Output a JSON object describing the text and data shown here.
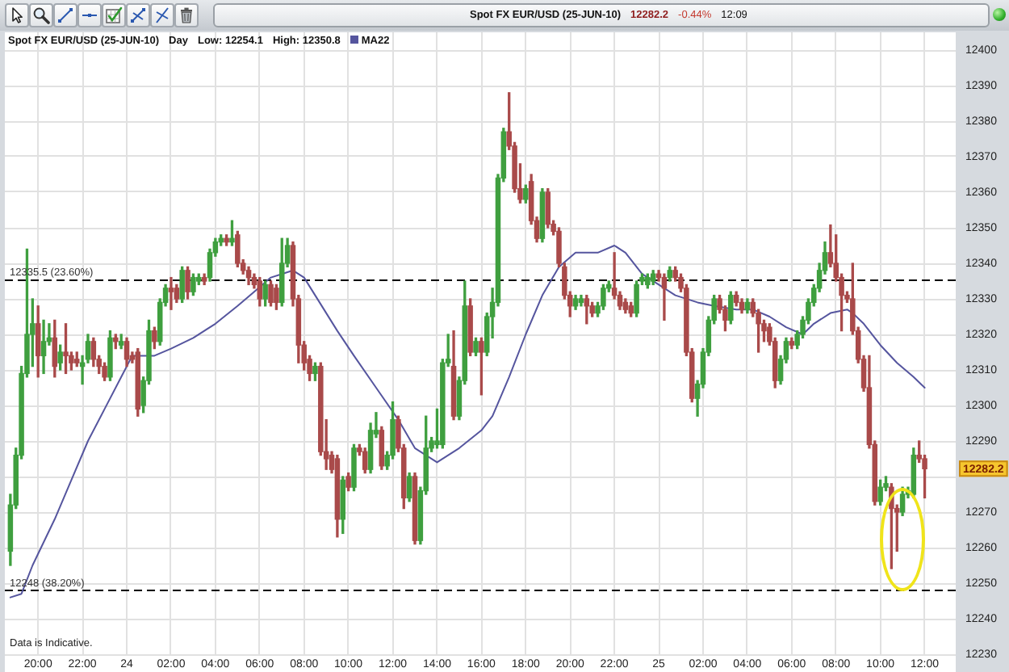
{
  "chart_data": {
    "type": "candlestick",
    "title": "Spot FX EUR/USD (25-JUN-10)",
    "subtitle": "Spot FX EUR/USD (25-JUN-10)",
    "annotations": [
      "12282.2",
      "-0.44%",
      "12:09",
      "Day",
      "Low: 12254.1",
      "High: 12350.8",
      "Data is Indicative.",
      {
        "text": "12282.2",
        "y": 12282.2
      }
    ],
    "x": [
      "--06-23T18:45",
      "--06-23T19:00",
      "--06-23T19:15",
      "--06-23T19:30",
      "--06-23T19:45",
      "--06-23T20:00",
      "--06-23T20:15",
      "--06-23T20:30",
      "--06-23T20:45",
      "--06-23T21:00",
      "--06-23T21:15",
      "--06-23T21:30",
      "--06-23T21:45",
      "--06-23T22:00",
      "--06-23T22:15",
      "--06-23T22:30",
      "--06-23T22:45",
      "--06-23T23:00",
      "--06-23T23:15",
      "--06-23T23:30",
      "--06-23T23:45",
      "--06-24T00:00",
      "--06-24T00:15",
      "--06-24T00:30",
      "--06-24T00:45",
      "--06-24T01:00",
      "--06-24T01:15",
      "--06-24T01:30",
      "--06-24T01:45",
      "--06-24T02:00",
      "--06-24T02:15",
      "--06-24T02:30",
      "--06-24T02:45",
      "--06-24T03:00",
      "--06-24T03:15",
      "--06-24T03:30",
      "--06-24T03:45",
      "--06-24T04:00",
      "--06-24T04:15",
      "--06-24T04:30",
      "--06-24T04:45",
      "--06-24T05:00",
      "--06-24T05:15",
      "--06-24T05:30",
      "--06-24T05:45",
      "--06-24T06:00",
      "--06-24T06:15",
      "--06-24T06:30",
      "--06-24T06:45",
      "--06-24T07:00",
      "--06-24T07:15",
      "--06-24T07:30",
      "--06-24T07:45",
      "--06-24T08:00",
      "--06-24T08:15",
      "--06-24T08:30",
      "--06-24T08:45",
      "--06-24T09:00",
      "--06-24T09:15",
      "--06-24T09:30",
      "--06-24T09:45",
      "--06-24T10:00",
      "--06-24T10:15",
      "--06-24T10:30",
      "--06-24T10:45",
      "--06-24T11:00",
      "--06-24T11:15",
      "--06-24T11:30",
      "--06-24T11:45",
      "--06-24T12:00",
      "--06-24T12:15",
      "--06-24T12:30",
      "--06-24T12:45",
      "--06-24T13:00",
      "--06-24T13:15",
      "--06-24T13:30",
      "--06-24T13:45",
      "--06-24T14:00",
      "--06-24T14:15",
      "--06-24T14:30",
      "--06-24T14:45",
      "--06-24T15:00",
      "--06-24T15:15",
      "--06-24T15:30",
      "--06-24T15:45",
      "--06-24T16:00",
      "--06-24T16:15",
      "--06-24T16:30",
      "--06-24T16:45",
      "--06-24T17:00",
      "--06-24T17:15",
      "--06-24T17:30",
      "--06-24T17:45",
      "--06-24T18:00",
      "--06-24T18:15",
      "--06-24T18:30",
      "--06-24T18:45",
      "--06-24T19:00",
      "--06-24T19:15",
      "--06-24T19:30",
      "--06-24T19:45",
      "--06-24T20:00",
      "--06-24T20:15",
      "--06-24T20:30",
      "--06-24T20:45",
      "--06-24T21:00",
      "--06-24T21:15",
      "--06-24T21:30",
      "--06-24T21:45",
      "--06-24T22:00",
      "--06-24T22:15",
      "--06-24T22:30",
      "--06-24T22:45",
      "--06-24T23:00",
      "--06-24T23:15",
      "--06-24T23:30",
      "--06-24T23:45",
      "--06-25T00:00",
      "--06-25T00:15",
      "--06-25T00:30",
      "--06-25T00:45",
      "--06-25T01:00",
      "--06-25T01:15",
      "--06-25T01:30",
      "--06-25T01:45",
      "--06-25T02:00",
      "--06-25T02:15",
      "--06-25T02:30",
      "--06-25T02:45",
      "--06-25T03:00",
      "--06-25T03:15",
      "--06-25T03:30",
      "--06-25T03:45",
      "--06-25T04:00",
      "--06-25T04:15",
      "--06-25T04:30",
      "--06-25T04:45",
      "--06-25T05:00",
      "--06-25T05:15",
      "--06-25T05:30",
      "--06-25T05:45",
      "--06-25T06:00",
      "--06-25T06:15",
      "--06-25T06:30",
      "--06-25T06:45",
      "--06-25T07:00",
      "--06-25T07:15",
      "--06-25T07:30",
      "--06-25T07:45",
      "--06-25T08:00",
      "--06-25T08:15",
      "--06-25T08:30",
      "--06-25T08:45",
      "--06-25T09:00",
      "--06-25T09:15",
      "--06-25T09:30",
      "--06-25T09:45",
      "--06-25T10:00",
      "--06-25T10:15",
      "--06-25T10:30",
      "--06-25T10:45",
      "--06-25T11:00",
      "--06-25T11:15",
      "--06-25T11:30",
      "--06-25T11:45",
      "--06-25T12:00"
    ],
    "ohlc": [
      [
        12259,
        12275,
        12255,
        12272
      ],
      [
        12272,
        12288,
        12271,
        12286
      ],
      [
        12286,
        12311,
        12285,
        12309
      ],
      [
        12309,
        12344,
        12308,
        12320
      ],
      [
        12320,
        12330,
        12311,
        12323
      ],
      [
        12323,
        12328,
        12308,
        12314
      ],
      [
        12314,
        12324,
        12309,
        12318
      ],
      [
        12318,
        12323,
        12317,
        12319
      ],
      [
        12319,
        12324,
        12308,
        12311
      ],
      [
        12312,
        12317,
        12310,
        12315
      ],
      [
        12315,
        12323,
        12309,
        12314
      ],
      [
        12314,
        12315,
        12310,
        12312
      ],
      [
        12313,
        12315,
        12311,
        12312
      ],
      [
        12311,
        12314,
        12306,
        12312
      ],
      [
        12313,
        12320,
        12312,
        12318
      ],
      [
        12318,
        12319,
        12311,
        12313
      ],
      [
        12313,
        12314,
        12309,
        12311
      ],
      [
        12311,
        12312,
        12307,
        12308
      ],
      [
        12308,
        12321,
        12307,
        12319
      ],
      [
        12319,
        12320,
        12316,
        12318
      ],
      [
        12317,
        12320,
        12316,
        12318
      ],
      [
        12318,
        12319,
        12311,
        12313
      ],
      [
        12314,
        12315,
        12312,
        12313
      ],
      [
        12315,
        12316,
        12297,
        12299
      ],
      [
        12300,
        12308,
        12298,
        12307
      ],
      [
        12307,
        12324,
        12306,
        12321
      ],
      [
        12321,
        12322,
        12316,
        12318
      ],
      [
        12318,
        12330,
        12317,
        12329
      ],
      [
        12329,
        12334,
        12328,
        12333
      ],
      [
        12333,
        12336,
        12327,
        12332
      ],
      [
        12333,
        12334,
        12329,
        12330
      ],
      [
        12330,
        12339,
        12329,
        12338
      ],
      [
        12338,
        12339,
        12330,
        12332
      ],
      [
        12332,
        12337,
        12331,
        12336
      ],
      [
        12335,
        12337,
        12334,
        12336
      ],
      [
        12336,
        12337,
        12334,
        12335
      ],
      [
        12336,
        12344,
        12335,
        12343
      ],
      [
        12343,
        12347,
        12342,
        12346
      ],
      [
        12346,
        12348,
        12345,
        12347
      ],
      [
        12347,
        12348,
        12345,
        12346
      ],
      [
        12346,
        12352,
        12345,
        12347
      ],
      [
        12348,
        12349,
        12339,
        12340
      ],
      [
        12340,
        12341,
        12337,
        12338
      ],
      [
        12338,
        12339,
        12334,
        12336
      ],
      [
        12336,
        12337,
        12333,
        12334
      ],
      [
        12335,
        12336,
        12328,
        12330
      ],
      [
        12330,
        12335,
        12328,
        12334
      ],
      [
        12334,
        12335,
        12328,
        12329
      ],
      [
        12333,
        12334,
        12327,
        12329
      ],
      [
        12329,
        12347,
        12328,
        12340
      ],
      [
        12340,
        12347,
        12339,
        12345
      ],
      [
        12345,
        12346,
        12328,
        12330
      ],
      [
        12330,
        12331,
        12312,
        12317
      ],
      [
        12317,
        12318,
        12310,
        12312
      ],
      [
        12313,
        12314,
        12307,
        12309
      ],
      [
        12309,
        12312,
        12307,
        12311
      ],
      [
        12311,
        12312,
        12286,
        12287
      ],
      [
        12287,
        12296,
        12282,
        12285
      ],
      [
        12286,
        12287,
        12281,
        12282
      ],
      [
        12285,
        12286,
        12263,
        12268
      ],
      [
        12268,
        12280,
        12264,
        12279
      ],
      [
        12280,
        12281,
        12276,
        12277
      ],
      [
        12277,
        12289,
        12276,
        12288
      ],
      [
        12288,
        12289,
        12286,
        12287
      ],
      [
        12287,
        12288,
        12281,
        12282
      ],
      [
        12282,
        12295,
        12281,
        12293
      ],
      [
        12292,
        12298,
        12291,
        12293
      ],
      [
        12293,
        12294,
        12282,
        12283
      ],
      [
        12283,
        12287,
        12282,
        12286
      ],
      [
        12286,
        12301,
        12285,
        12296
      ],
      [
        12296,
        12297,
        12287,
        12288
      ],
      [
        12288,
        12289,
        12271,
        12274
      ],
      [
        12274,
        12281,
        12273,
        12280
      ],
      [
        12280,
        12281,
        12261,
        12262
      ],
      [
        12262,
        12277,
        12261,
        12276
      ],
      [
        12276,
        12297,
        12275,
        12288
      ],
      [
        12288,
        12291,
        12287,
        12290
      ],
      [
        12289,
        12299,
        12288,
        12290
      ],
      [
        12289,
        12313,
        12288,
        12312
      ],
      [
        12312,
        12320,
        12311,
        12313
      ],
      [
        12311,
        12321,
        12296,
        12297
      ],
      [
        12297,
        12308,
        12296,
        12307
      ],
      [
        12307,
        12335,
        12306,
        12328
      ],
      [
        12328,
        12330,
        12314,
        12315
      ],
      [
        12315,
        12319,
        12314,
        12318
      ],
      [
        12318,
        12319,
        12303,
        12315
      ],
      [
        12315,
        12326,
        12314,
        12325
      ],
      [
        12325,
        12333,
        12319,
        12329
      ],
      [
        12329,
        12365,
        12328,
        12364
      ],
      [
        12364,
        12378,
        12363,
        12377
      ],
      [
        12377,
        12388,
        12372,
        12373
      ],
      [
        12373,
        12374,
        12360,
        12361
      ],
      [
        12361,
        12368,
        12357,
        12358
      ],
      [
        12358,
        12362,
        12357,
        12361
      ],
      [
        12363,
        12365,
        12351,
        12352
      ],
      [
        12352,
        12353,
        12346,
        12347
      ],
      [
        12347,
        12361,
        12346,
        12360
      ],
      [
        12360,
        12361,
        12350,
        12351
      ],
      [
        12351,
        12352,
        12348,
        12349
      ],
      [
        12349,
        12350,
        12339,
        12340
      ],
      [
        12339,
        12340,
        12330,
        12331
      ],
      [
        12331,
        12332,
        12325,
        12328
      ],
      [
        12328,
        12331,
        12327,
        12330
      ],
      [
        12329,
        12331,
        12328,
        12330
      ],
      [
        12330,
        12331,
        12323,
        12328
      ],
      [
        12328,
        12329,
        12325,
        12326
      ],
      [
        12326,
        12329,
        12325,
        12328
      ],
      [
        12328,
        12334,
        12327,
        12333
      ],
      [
        12333,
        12335,
        12332,
        12334
      ],
      [
        12333,
        12343,
        12330,
        12331
      ],
      [
        12331,
        12332,
        12327,
        12328
      ],
      [
        12329,
        12330,
        12326,
        12327
      ],
      [
        12328,
        12329,
        12325,
        12326
      ],
      [
        12326,
        12335,
        12325,
        12334
      ],
      [
        12335,
        12337,
        12334,
        12336
      ],
      [
        12334,
        12337,
        12333,
        12336
      ],
      [
        12335,
        12338,
        12334,
        12337
      ],
      [
        12337,
        12338,
        12335,
        12336
      ],
      [
        12336,
        12337,
        12324,
        12333
      ],
      [
        12336,
        12339,
        12335,
        12338
      ],
      [
        12338,
        12339,
        12335,
        12336
      ],
      [
        12336,
        12337,
        12332,
        12333
      ],
      [
        12333,
        12334,
        12314,
        12315
      ],
      [
        12315,
        12316,
        12301,
        12302
      ],
      [
        12302,
        12307,
        12297,
        12306
      ],
      [
        12306,
        12316,
        12305,
        12315
      ],
      [
        12315,
        12325,
        12314,
        12324
      ],
      [
        12324,
        12331,
        12323,
        12330
      ],
      [
        12330,
        12331,
        12326,
        12327
      ],
      [
        12327,
        12328,
        12321,
        12324
      ],
      [
        12324,
        12332,
        12323,
        12331
      ],
      [
        12331,
        12332,
        12328,
        12329
      ],
      [
        12329,
        12330,
        12326,
        12327
      ],
      [
        12327,
        12330,
        12326,
        12329
      ],
      [
        12329,
        12330,
        12325,
        12326
      ],
      [
        12326,
        12327,
        12315,
        12323
      ],
      [
        12323,
        12324,
        12318,
        12321
      ],
      [
        12322,
        12323,
        12317,
        12318
      ],
      [
        12318,
        12319,
        12305,
        12307
      ],
      [
        12307,
        12314,
        12306,
        12313
      ],
      [
        12313,
        12319,
        12312,
        12318
      ],
      [
        12318,
        12319,
        12316,
        12317
      ],
      [
        12317,
        12321,
        12316,
        12320
      ],
      [
        12320,
        12325,
        12319,
        12324
      ],
      [
        12324,
        12330,
        12323,
        12329
      ],
      [
        12329,
        12334,
        12328,
        12333
      ],
      [
        12333,
        12340,
        12332,
        12338
      ],
      [
        12338,
        12346,
        12337,
        12343
      ],
      [
        12343,
        12350.8,
        12339,
        12340
      ],
      [
        12340,
        12348,
        12335,
        12336
      ],
      [
        12336,
        12337,
        12321,
        12331
      ],
      [
        12331,
        12332,
        12329,
        12330
      ],
      [
        12330,
        12340,
        12320,
        12321
      ],
      [
        12321,
        12322,
        12312,
        12313
      ],
      [
        12313,
        12314,
        12304,
        12305
      ],
      [
        12305,
        12314,
        12288,
        12289
      ],
      [
        12289,
        12290,
        12272,
        12273
      ],
      [
        12273,
        12279,
        12272,
        12277
      ],
      [
        12277,
        12280,
        12276,
        12278
      ],
      [
        12277,
        12278,
        12254.1,
        12271
      ],
      [
        12271,
        12272,
        12259,
        12270
      ],
      [
        12270,
        12277,
        12269,
        12275
      ],
      [
        12275,
        12277,
        12274,
        12276
      ],
      [
        12275,
        12288,
        12274,
        12286
      ],
      [
        12286,
        12290,
        12284,
        12285
      ],
      [
        12285,
        12286,
        12274,
        12282.2
      ]
    ],
    "colors": [
      "#3f9f3f",
      "#3f9f3f",
      "#3f9f3f",
      "#3f9f3f",
      "#3f9f3f",
      "#a94a4a",
      "#3f9f3f",
      "#3f9f3f",
      "#a94a4a",
      "#3f9f3f",
      "#a94a4a",
      "#a94a4a",
      "#a94a4a",
      "#3f9f3f",
      "#3f9f3f",
      "#a94a4a",
      "#a94a4a",
      "#a94a4a",
      "#3f9f3f",
      "#a94a4a",
      "#3f9f3f",
      "#a94a4a",
      "#a94a4a",
      "#a94a4a",
      "#3f9f3f",
      "#3f9f3f",
      "#a94a4a",
      "#3f9f3f",
      "#3f9f3f",
      "#a94a4a",
      "#a94a4a",
      "#3f9f3f",
      "#a94a4a",
      "#3f9f3f",
      "#3f9f3f",
      "#a94a4a",
      "#3f9f3f",
      "#3f9f3f",
      "#3f9f3f",
      "#a94a4a",
      "#3f9f3f",
      "#a94a4a",
      "#a94a4a",
      "#a94a4a",
      "#a94a4a",
      "#a94a4a",
      "#3f9f3f",
      "#a94a4a",
      "#a94a4a",
      "#3f9f3f",
      "#3f9f3f",
      "#a94a4a",
      "#a94a4a",
      "#a94a4a",
      "#a94a4a",
      "#3f9f3f",
      "#a94a4a",
      "#a94a4a",
      "#a94a4a",
      "#a94a4a",
      "#3f9f3f",
      "#a94a4a",
      "#3f9f3f",
      "#a94a4a",
      "#a94a4a",
      "#3f9f3f",
      "#3f9f3f",
      "#a94a4a",
      "#3f9f3f",
      "#3f9f3f",
      "#a94a4a",
      "#a94a4a",
      "#3f9f3f",
      "#a94a4a",
      "#3f9f3f",
      "#3f9f3f",
      "#3f9f3f",
      "#3f9f3f",
      "#3f9f3f",
      "#3f9f3f",
      "#a94a4a",
      "#3f9f3f",
      "#3f9f3f",
      "#a94a4a",
      "#3f9f3f",
      "#a94a4a",
      "#3f9f3f",
      "#3f9f3f",
      "#3f9f3f",
      "#3f9f3f",
      "#a94a4a",
      "#a94a4a",
      "#a94a4a",
      "#3f9f3f",
      "#a94a4a",
      "#a94a4a",
      "#3f9f3f",
      "#a94a4a",
      "#a94a4a",
      "#a94a4a",
      "#a94a4a",
      "#a94a4a",
      "#3f9f3f",
      "#3f9f3f",
      "#a94a4a",
      "#a94a4a",
      "#3f9f3f",
      "#3f9f3f",
      "#3f9f3f",
      "#a94a4a",
      "#a94a4a",
      "#a94a4a",
      "#a94a4a",
      "#3f9f3f",
      "#3f9f3f",
      "#3f9f3f",
      "#3f9f3f",
      "#a94a4a",
      "#a94a4a",
      "#3f9f3f",
      "#a94a4a",
      "#a94a4a",
      "#a94a4a",
      "#a94a4a",
      "#3f9f3f",
      "#3f9f3f",
      "#3f9f3f",
      "#3f9f3f",
      "#a94a4a",
      "#a94a4a",
      "#3f9f3f",
      "#a94a4a",
      "#a94a4a",
      "#3f9f3f",
      "#a94a4a",
      "#a94a4a",
      "#a94a4a",
      "#a94a4a",
      "#a94a4a",
      "#3f9f3f",
      "#3f9f3f",
      "#a94a4a",
      "#3f9f3f",
      "#3f9f3f",
      "#3f9f3f",
      "#3f9f3f",
      "#3f9f3f",
      "#3f9f3f",
      "#a94a4a",
      "#a94a4a",
      "#a94a4a",
      "#a94a4a",
      "#a94a4a",
      "#a94a4a",
      "#a94a4a",
      "#a94a4a",
      "#a94a4a",
      "#3f9f3f",
      "#3f9f3f",
      "#a94a4a",
      "#a94a4a",
      "#3f9f3f",
      "#3f9f3f",
      "#3f9f3f",
      "#a94a4a",
      "#a94a4a"
    ],
    "series": [
      {
        "type": "line",
        "name": "MA22",
        "color": "#55559e",
        "x": [
          "--06-23T18:45",
          "--06-23T19:15",
          "--06-23T19:45",
          "--06-23T20:45",
          "--06-23T21:30",
          "--06-23T22:15",
          "--06-23T23:00",
          "--06-23T23:45",
          "--06-24T00:15",
          "--06-24T00:30",
          "--06-24T01:15",
          "--06-24T02:00",
          "--06-24T03:00",
          "--06-24T04:00",
          "--06-24T05:00",
          "--06-24T05:45",
          "--06-24T06:30",
          "--06-24T07:00",
          "--06-24T07:30",
          "--06-24T08:00",
          "--06-24T08:30",
          "--06-24T09:30",
          "--06-24T10:15",
          "--06-24T11:15",
          "--06-24T12:15",
          "--06-24T13:00",
          "--06-24T14:00",
          "--06-24T15:00",
          "--06-24T16:00",
          "--06-24T16:30",
          "--06-24T17:15",
          "--06-24T18:00",
          "--06-24T18:45",
          "--06-24T19:30",
          "--06-24T20:15",
          "--06-24T21:15",
          "--06-24T22:00",
          "--06-24T22:30",
          "--06-24T23:15",
          "--06-25T00:00",
          "--06-25T00:45",
          "--06-25T01:45",
          "--06-25T02:30",
          "--06-25T03:30",
          "--06-25T04:15",
          "--06-25T05:00",
          "--06-25T05:45",
          "--06-25T06:30",
          "--06-25T07:00",
          "--06-25T07:45",
          "--06-25T08:30",
          "--06-25T08:45",
          "--06-25T09:15",
          "--06-25T10:00",
          "--06-25T10:45",
          "--06-25T11:30",
          "--06-25T12:00"
        ],
        "values": [
          12246,
          12247,
          12255,
          12268,
          12279,
          12290,
          12299,
          12308,
          12314,
          12314,
          12314,
          12316,
          12319,
          12323,
          12328,
          12332,
          12336,
          12337,
          12338,
          12336,
          12331,
          12321,
          12314,
          12305,
          12296,
          12288,
          12284,
          12288,
          12293,
          12297,
          12308,
          12320,
          12331,
          12339,
          12343,
          12343,
          12345,
          12343,
          12337,
          12334,
          12331,
          12329,
          12328,
          12327,
          12327,
          12325,
          12322,
          12320,
          12323,
          12326,
          12327,
          12326,
          12323,
          12317,
          12312,
          12308,
          12305
        ]
      }
    ],
    "xlim": [
      "--06-23T18:30",
      "--06-25T13:24"
    ],
    "xticks": [
      {
        "value": "--06-23T20:00",
        "label": "20:00"
      },
      {
        "value": "--06-23T22:00",
        "label": "22:00"
      },
      {
        "value": "--06-24T00:00",
        "label": "24"
      },
      {
        "value": "--06-24T02:00",
        "label": "02:00"
      },
      {
        "value": "--06-24T04:00",
        "label": "04:00"
      },
      {
        "value": "--06-24T06:00",
        "label": "06:00"
      },
      {
        "value": "--06-24T08:00",
        "label": "08:00"
      },
      {
        "value": "--06-24T10:00",
        "label": "10:00"
      },
      {
        "value": "--06-24T12:00",
        "label": "12:00"
      },
      {
        "value": "--06-24T14:00",
        "label": "14:00"
      },
      {
        "value": "--06-24T16:00",
        "label": "16:00"
      },
      {
        "value": "--06-24T18:00",
        "label": "18:00"
      },
      {
        "value": "--06-24T20:00",
        "label": "20:00"
      },
      {
        "value": "--06-24T22:00",
        "label": "22:00"
      },
      {
        "value": "--06-25T00:00",
        "label": "25"
      },
      {
        "value": "--06-25T02:00",
        "label": "02:00"
      },
      {
        "value": "--06-25T04:00",
        "label": "04:00"
      },
      {
        "value": "--06-25T06:00",
        "label": "06:00"
      },
      {
        "value": "--06-25T08:00",
        "label": "08:00"
      },
      {
        "value": "--06-25T10:00",
        "label": "10:00"
      },
      {
        "value": "--06-25T12:00",
        "label": "12:00"
      }
    ],
    "ylim": [
      12230,
      12405
    ],
    "yticks": [
      12230,
      12240,
      12250,
      12260,
      12270,
      {
        "value": 12280,
        "label": null
      },
      12290,
      12300,
      12310,
      12320,
      12330,
      12340,
      12350,
      12360,
      12370,
      12380,
      12390,
      12400
    ],
    "ref_lines": [
      {
        "axis": "y",
        "value": 12335.5,
        "label": "12335.5 (23.60%)",
        "color": "#000000",
        "line_style": "dashed"
      },
      {
        "axis": "y",
        "value": 12248,
        "label": "12248 (38.20%)",
        "color": "#000000",
        "line_style": "dashed"
      }
    ],
    "grid": true,
    "legend": "top left",
    "marker": "none"
  }
}
